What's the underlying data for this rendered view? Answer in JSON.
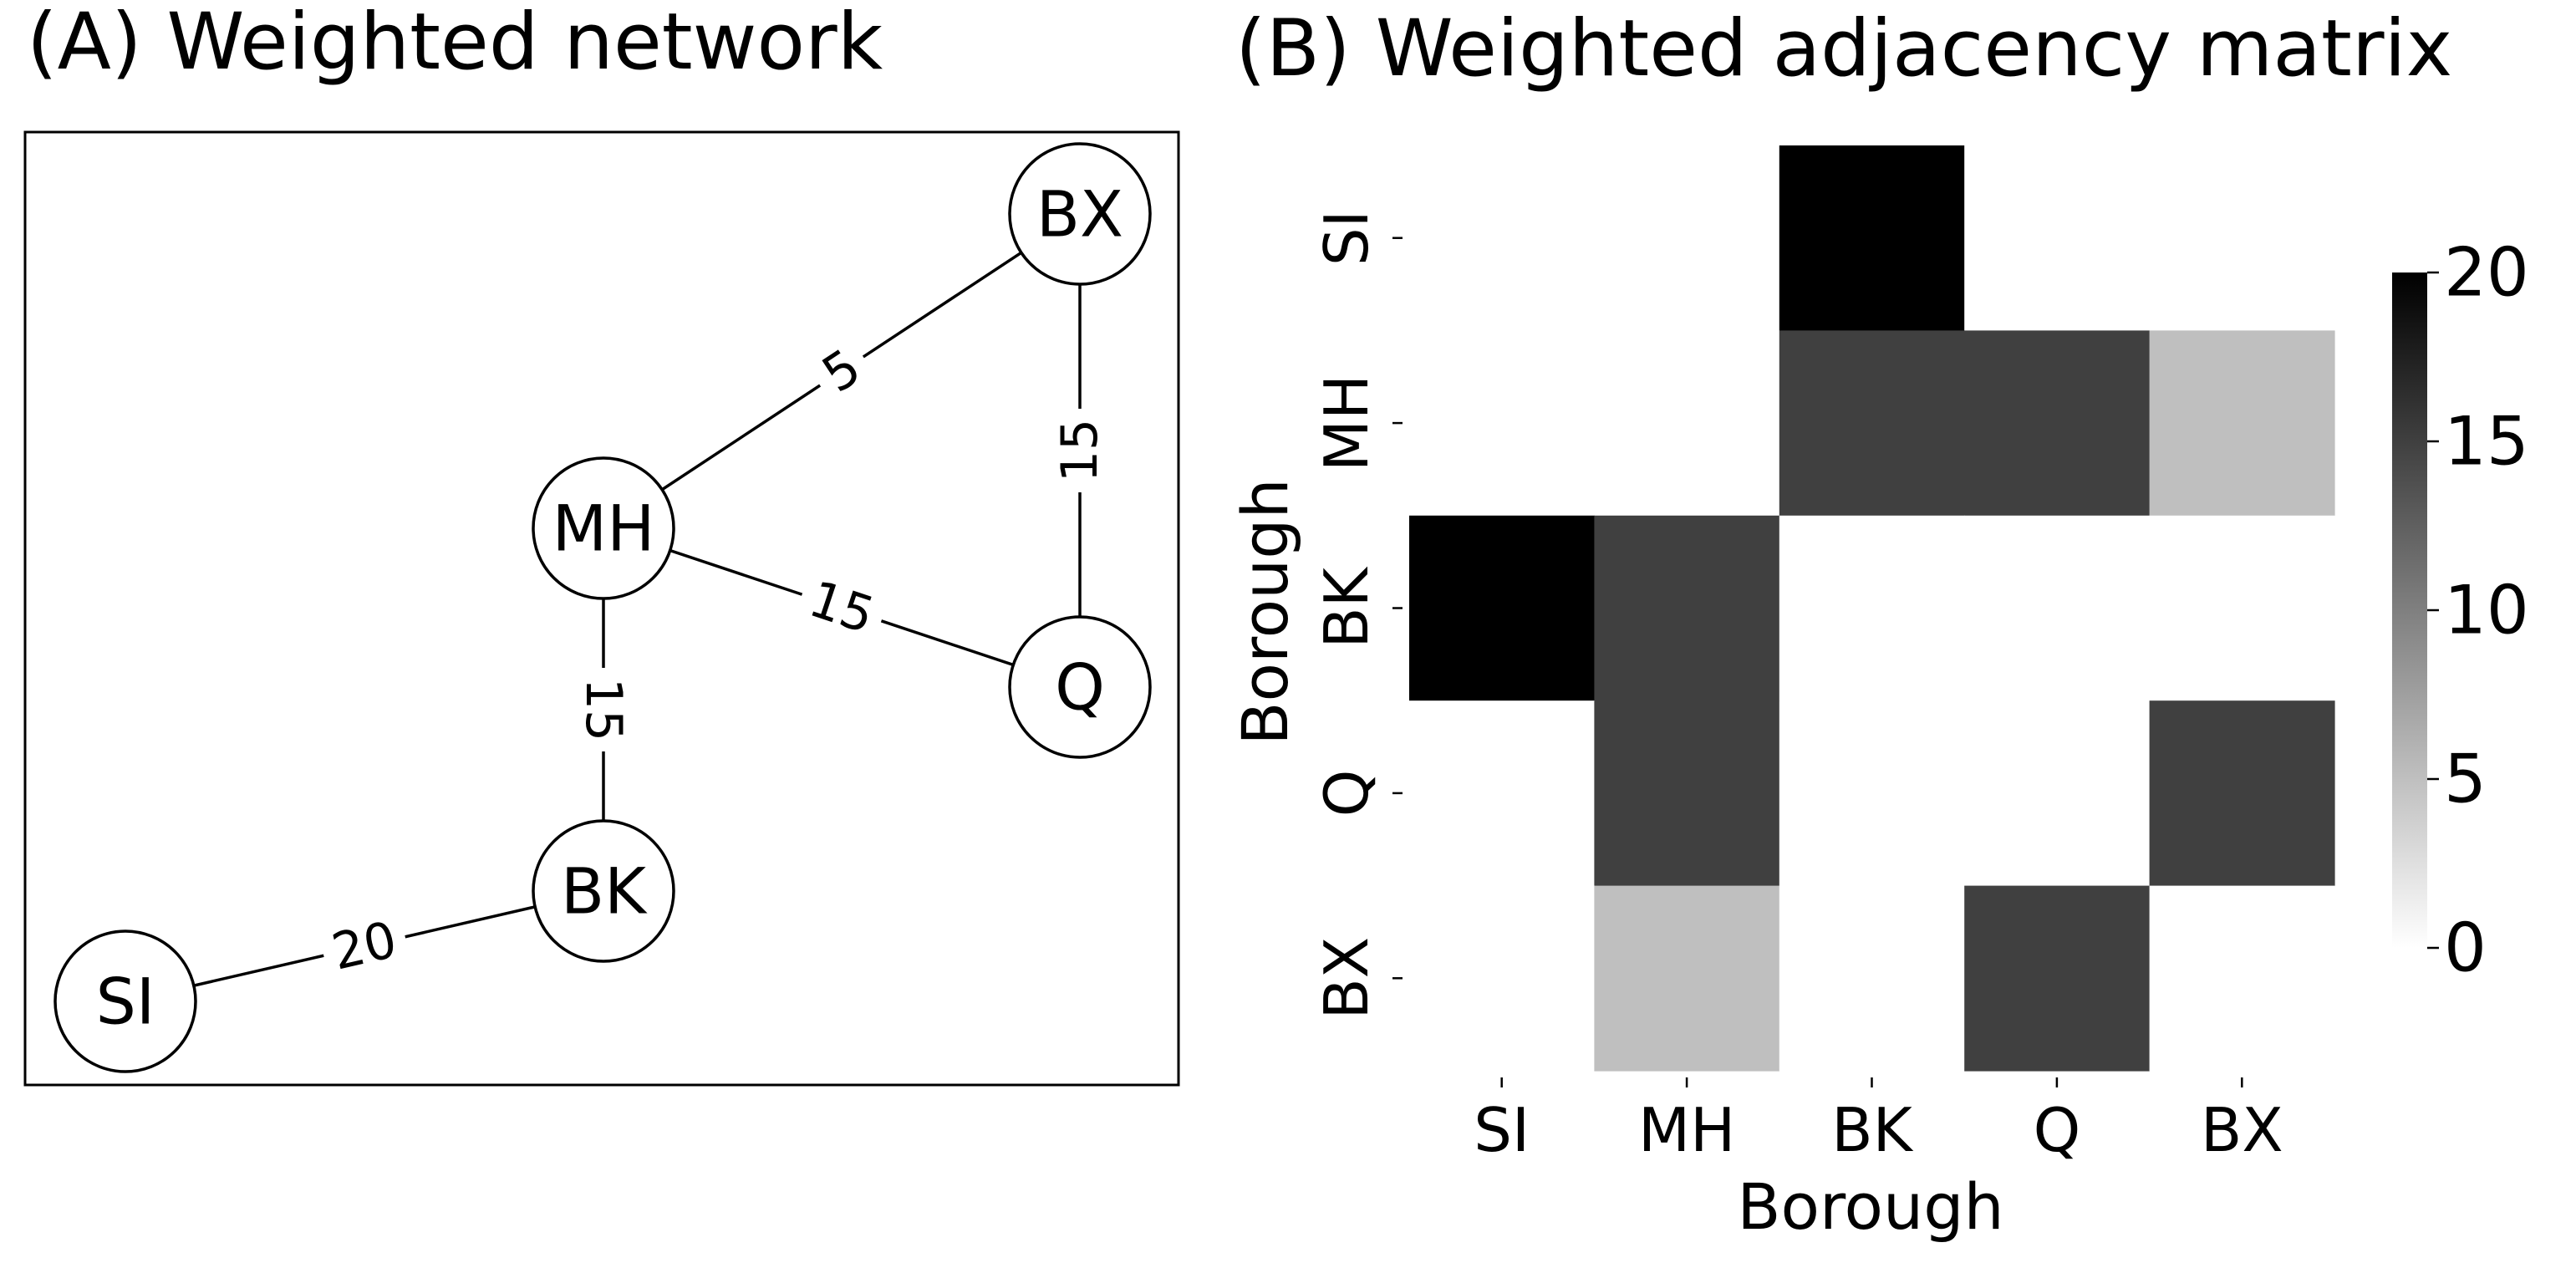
{
  "panel_a": {
    "title": "(A) Weighted network"
  },
  "panel_b": {
    "title": "(B) Weighted adjacency matrix"
  },
  "chart_data": [
    {
      "type": "network",
      "title": "(A) Weighted network",
      "nodes": [
        "SI",
        "MH",
        "BK",
        "Q",
        "BX"
      ],
      "edges": [
        {
          "source": "SI",
          "target": "BK",
          "weight": 20
        },
        {
          "source": "MH",
          "target": "BK",
          "weight": 15
        },
        {
          "source": "MH",
          "target": "Q",
          "weight": 15
        },
        {
          "source": "MH",
          "target": "BX",
          "weight": 5
        },
        {
          "source": "Q",
          "target": "BX",
          "weight": 15
        }
      ],
      "edge_color": "#000000",
      "node_fill": "#ffffff"
    },
    {
      "type": "heatmap",
      "title": "(B) Weighted adjacency matrix",
      "xlabel": "Borough",
      "ylabel": "Borough",
      "rows": [
        "SI",
        "MH",
        "BK",
        "Q",
        "BX"
      ],
      "columns": [
        "SI",
        "MH",
        "BK",
        "Q",
        "BX"
      ],
      "values": [
        [
          0,
          0,
          20,
          0,
          0
        ],
        [
          0,
          0,
          15,
          15,
          5
        ],
        [
          20,
          15,
          0,
          0,
          0
        ],
        [
          0,
          15,
          0,
          0,
          15
        ],
        [
          0,
          5,
          0,
          15,
          0
        ]
      ],
      "colorbar": {
        "min": 0,
        "max": 20,
        "ticks": [
          "0",
          "5",
          "10",
          "15",
          "20"
        ],
        "colormap": "white-to-black",
        "color_low": "#ffffff",
        "color_high": "#000000"
      }
    }
  ]
}
